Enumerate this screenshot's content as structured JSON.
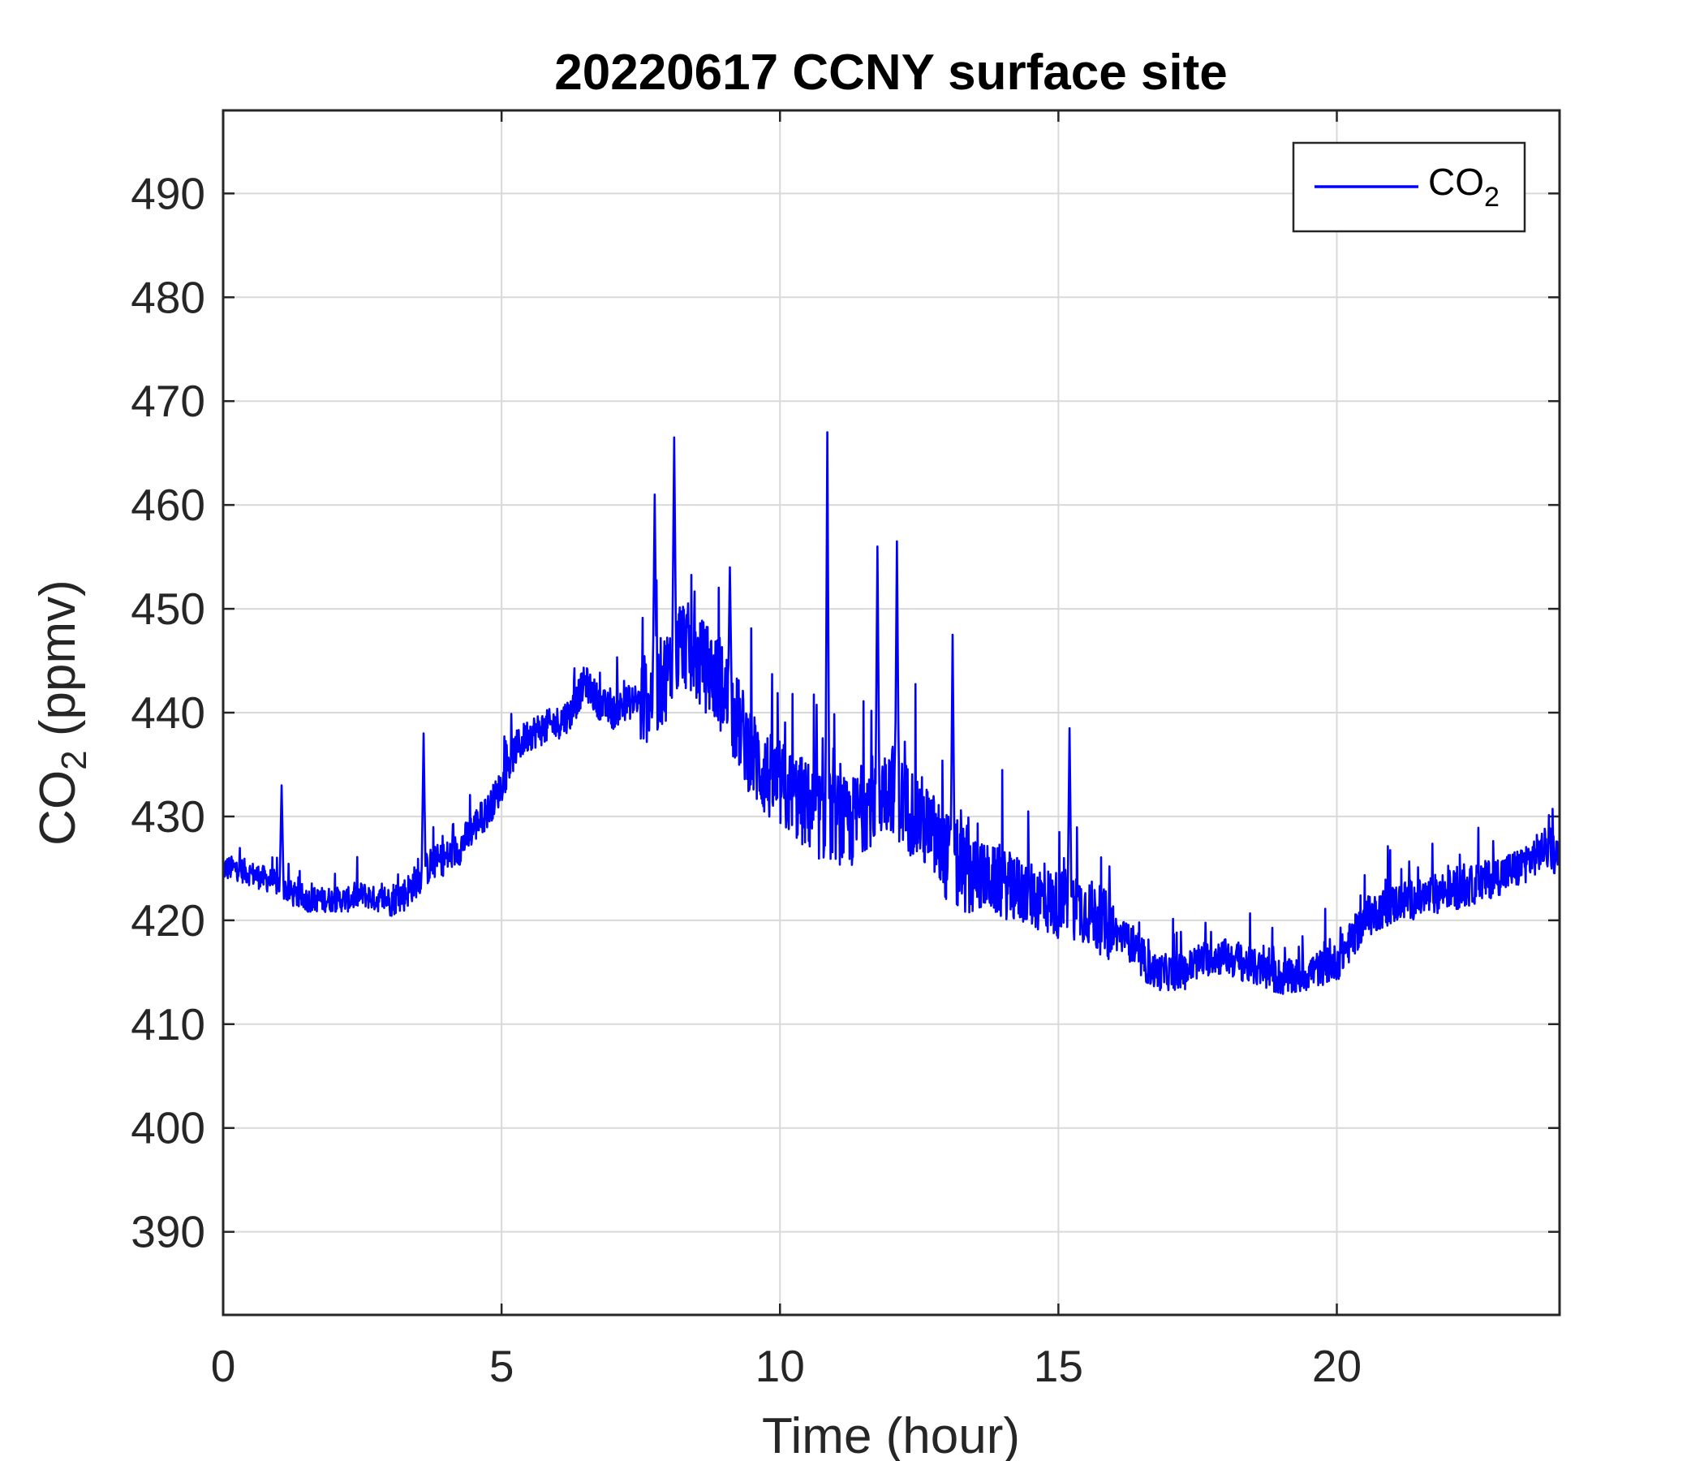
{
  "chart_data": {
    "type": "line",
    "title": "20220617 CCNY surface site",
    "xlabel": "Time (hour)",
    "ylabel": {
      "pre": "CO",
      "sub": "2",
      "post": " (ppmv)"
    },
    "xlim": [
      0,
      24
    ],
    "ylim": [
      382,
      498
    ],
    "xticks": [
      0,
      5,
      10,
      15,
      20
    ],
    "yticks": [
      390,
      400,
      410,
      420,
      430,
      440,
      450,
      460,
      470,
      480,
      490
    ],
    "grid": true,
    "legend_position": "top-right",
    "colors": {
      "series": "#0000ff",
      "grid": "#d9d9d9",
      "axis": "#262626"
    },
    "series": [
      {
        "name": {
          "pre": "CO",
          "sub": "2"
        },
        "x": [
          0,
          0.25,
          0.5,
          0.75,
          1,
          1.25,
          1.5,
          1.75,
          2,
          2.25,
          2.5,
          2.75,
          3,
          3.25,
          3.5,
          3.75,
          4,
          4.25,
          4.5,
          4.75,
          5,
          5.25,
          5.5,
          5.75,
          6,
          6.25,
          6.5,
          6.75,
          7,
          7.25,
          7.5,
          7.75,
          8,
          8.25,
          8.5,
          8.75,
          9,
          9.25,
          9.5,
          9.75,
          10,
          10.25,
          10.5,
          10.75,
          11,
          11.25,
          11.5,
          11.75,
          12,
          12.25,
          12.5,
          12.75,
          13,
          13.25,
          13.5,
          13.75,
          14,
          14.25,
          14.5,
          14.75,
          15,
          15.25,
          15.5,
          15.75,
          16,
          16.25,
          16.5,
          16.75,
          17,
          17.25,
          17.5,
          17.75,
          18,
          18.25,
          18.5,
          18.75,
          19,
          19.25,
          19.5,
          19.75,
          20,
          20.25,
          20.5,
          20.75,
          21,
          21.25,
          21.5,
          21.75,
          22,
          22.25,
          22.5,
          22.75,
          23,
          23.25,
          23.5,
          23.75,
          24
        ],
        "y": [
          425,
          425,
          424.5,
          424,
          423.5,
          422.5,
          422,
          422,
          422,
          422,
          422.5,
          422,
          422,
          422.5,
          424,
          425.5,
          426,
          427,
          429,
          430.5,
          433,
          436.5,
          438,
          438.5,
          439,
          440,
          443,
          441,
          440,
          441,
          441,
          442,
          444,
          447,
          445,
          444,
          442,
          439,
          436,
          434,
          433,
          432,
          431,
          430,
          430,
          429,
          431,
          432,
          433,
          431,
          430,
          428,
          426,
          425,
          424.5,
          424,
          423.5,
          423,
          422.5,
          422,
          421.5,
          421.5,
          421,
          420,
          419,
          418,
          416,
          415,
          415,
          415,
          416,
          416.5,
          416.5,
          416,
          415.5,
          415,
          414.5,
          414.5,
          415,
          415.5,
          416,
          418,
          420,
          421,
          421.5,
          422,
          422,
          422.5,
          423,
          423,
          423.5,
          424,
          424.5,
          425,
          426,
          427,
          426
        ],
        "spikes": [
          {
            "x": 1.05,
            "y": 433
          },
          {
            "x": 3.6,
            "y": 438
          },
          {
            "x": 7.75,
            "y": 461
          },
          {
            "x": 8.1,
            "y": 466.5
          },
          {
            "x": 9.1,
            "y": 454
          },
          {
            "x": 10.85,
            "y": 467
          },
          {
            "x": 11.75,
            "y": 456
          },
          {
            "x": 12.1,
            "y": 456.5
          },
          {
            "x": 13.1,
            "y": 447.5
          },
          {
            "x": 15.2,
            "y": 438.5
          }
        ]
      }
    ]
  }
}
